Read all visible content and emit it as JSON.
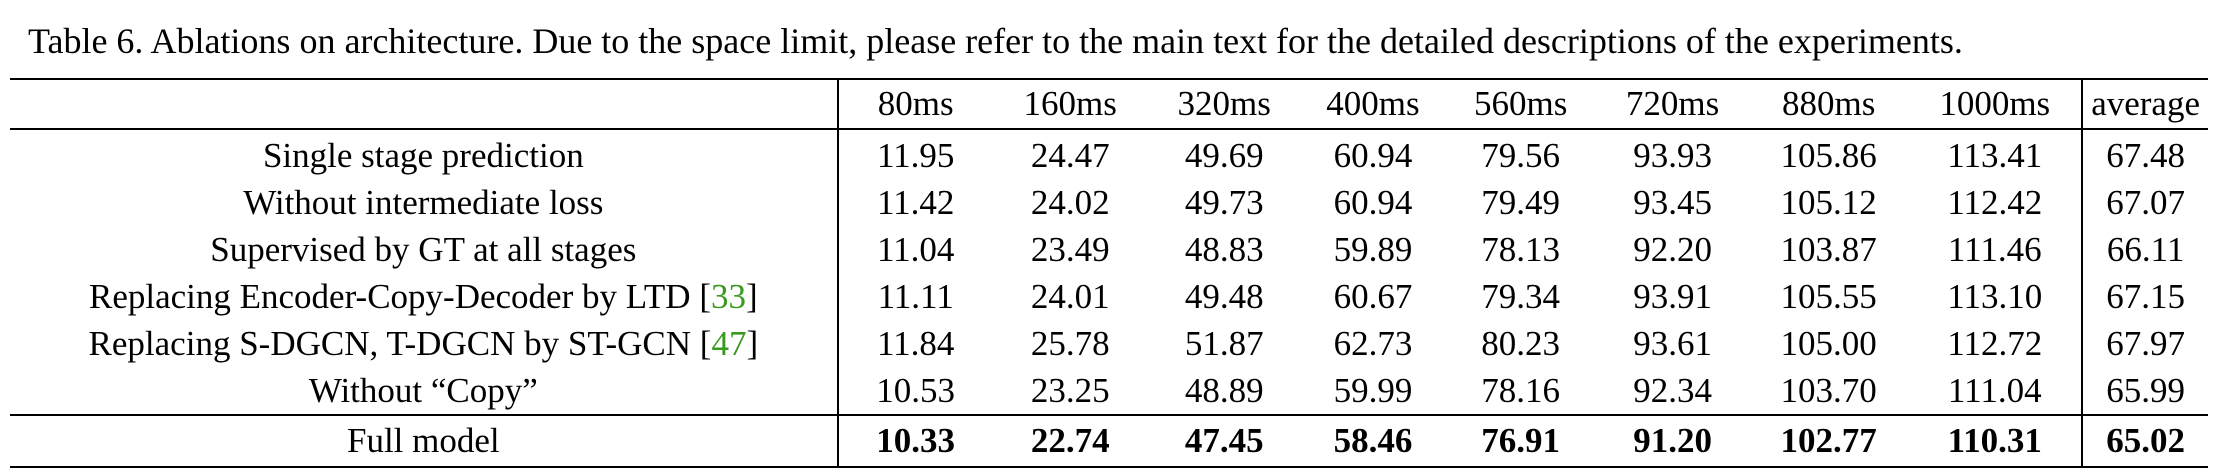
{
  "caption": "Table 6. Ablations on architecture. Due to the space limit, please refer to the main text for the detailed descriptions of the experiments.",
  "columns": [
    "80ms",
    "160ms",
    "320ms",
    "400ms",
    "560ms",
    "720ms",
    "880ms",
    "1000ms",
    "average"
  ],
  "rows": [
    {
      "label": "Single stage prediction",
      "cite": "",
      "values": [
        "11.95",
        "24.47",
        "49.69",
        "60.94",
        "79.56",
        "93.93",
        "105.86",
        "113.41",
        "67.48"
      ]
    },
    {
      "label": "Without intermediate loss",
      "cite": "",
      "values": [
        "11.42",
        "24.02",
        "49.73",
        "60.94",
        "79.49",
        "93.45",
        "105.12",
        "112.42",
        "67.07"
      ]
    },
    {
      "label": "Supervised by GT at all stages",
      "cite": "",
      "values": [
        "11.04",
        "23.49",
        "48.83",
        "59.89",
        "78.13",
        "92.20",
        "103.87",
        "111.46",
        "66.11"
      ]
    },
    {
      "label": "Replacing Encoder-Copy-Decoder by LTD [",
      "cite": "33",
      "values": [
        "11.11",
        "24.01",
        "49.48",
        "60.67",
        "79.34",
        "93.91",
        "105.55",
        "113.10",
        "67.15"
      ]
    },
    {
      "label": "Replacing S-DGCN, T-DGCN by ST-GCN [",
      "cite": "47",
      "values": [
        "11.84",
        "25.78",
        "51.87",
        "62.73",
        "80.23",
        "93.61",
        "105.00",
        "112.72",
        "67.97"
      ]
    },
    {
      "label": "Without “Copy”",
      "cite": "",
      "values": [
        "10.53",
        "23.25",
        "48.89",
        "59.99",
        "78.16",
        "92.34",
        "103.70",
        "111.04",
        "65.99"
      ]
    }
  ],
  "full_model": {
    "label": "Full model",
    "values": [
      "10.33",
      "22.74",
      "47.45",
      "58.46",
      "76.91",
      "91.20",
      "102.77",
      "110.31",
      "65.02"
    ]
  },
  "colors": {
    "text": "#000000",
    "citation": "#3a9a1f",
    "rule": "#000000"
  }
}
